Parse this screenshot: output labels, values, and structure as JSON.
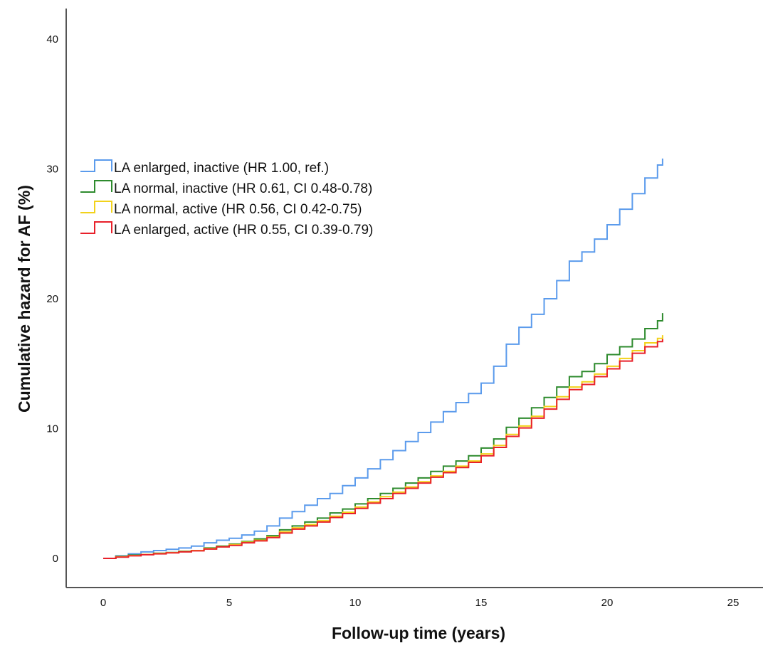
{
  "chart_data": {
    "type": "line",
    "title": "",
    "xlabel": "Follow-up time (years)",
    "ylabel": "Cumulative hazard for AF (%)",
    "xlim": [
      0,
      25
    ],
    "ylim": [
      0,
      40
    ],
    "x_ticks": [
      0,
      5,
      10,
      15,
      20,
      25
    ],
    "y_ticks": [
      0,
      10,
      20,
      30,
      40
    ],
    "grid": false,
    "legend_position": "upper-left",
    "series": [
      {
        "name": "LA enlarged, inactive (HR 1.00, ref.)",
        "color": "#5b9bec",
        "x": [
          0,
          0.5,
          1,
          1.5,
          2,
          2.5,
          3,
          3.5,
          4,
          4.5,
          5,
          5.5,
          6,
          6.5,
          7,
          7.5,
          8,
          8.5,
          9,
          9.5,
          10,
          10.5,
          11,
          11.5,
          12,
          12.5,
          13,
          13.5,
          14,
          14.5,
          15,
          15.5,
          16,
          16.5,
          17,
          17.5,
          18,
          18.5,
          19,
          19.5,
          20,
          20.5,
          21,
          21.5,
          22,
          22.2
        ],
        "y": [
          0,
          0.2,
          0.35,
          0.5,
          0.6,
          0.7,
          0.8,
          0.95,
          1.2,
          1.4,
          1.55,
          1.8,
          2.1,
          2.5,
          3.1,
          3.6,
          4.1,
          4.6,
          5.0,
          5.6,
          6.2,
          6.9,
          7.6,
          8.3,
          9.0,
          9.7,
          10.5,
          11.3,
          12.0,
          12.7,
          13.5,
          14.8,
          16.5,
          17.8,
          18.8,
          20.0,
          21.4,
          22.9,
          23.6,
          24.6,
          25.7,
          26.9,
          28.1,
          29.3,
          30.3,
          30.8
        ]
      },
      {
        "name": "LA normal, inactive (HR 0.61, CI 0.48-0.78)",
        "color": "#2e8b2e",
        "x": [
          0,
          0.5,
          1,
          1.5,
          2,
          2.5,
          3,
          3.5,
          4,
          4.5,
          5,
          5.5,
          6,
          6.5,
          7,
          7.5,
          8,
          8.5,
          9,
          9.5,
          10,
          10.5,
          11,
          11.5,
          12,
          12.5,
          13,
          13.5,
          14,
          14.5,
          15,
          15.5,
          16,
          16.5,
          17,
          17.5,
          18,
          18.5,
          19,
          19.5,
          20,
          20.5,
          21,
          21.5,
          22,
          22.2
        ],
        "y": [
          0,
          0.15,
          0.25,
          0.3,
          0.4,
          0.45,
          0.55,
          0.6,
          0.8,
          0.95,
          1.1,
          1.3,
          1.5,
          1.75,
          2.2,
          2.5,
          2.8,
          3.1,
          3.5,
          3.8,
          4.2,
          4.6,
          5.0,
          5.4,
          5.8,
          6.2,
          6.7,
          7.1,
          7.5,
          7.9,
          8.5,
          9.2,
          10.1,
          10.8,
          11.6,
          12.4,
          13.2,
          14.0,
          14.4,
          15.0,
          15.7,
          16.3,
          16.9,
          17.7,
          18.3,
          18.9
        ]
      },
      {
        "name": "LA normal, active (HR 0.56, CI 0.42-0.75)",
        "color": "#f2d21b",
        "x": [
          0,
          0.5,
          1,
          1.5,
          2,
          2.5,
          3,
          3.5,
          4,
          4.5,
          5,
          5.5,
          6,
          6.5,
          7,
          7.5,
          8,
          8.5,
          9,
          9.5,
          10,
          10.5,
          11,
          11.5,
          12,
          12.5,
          13,
          13.5,
          14,
          14.5,
          15,
          15.5,
          16,
          16.5,
          17,
          17.5,
          18,
          18.5,
          19,
          19.5,
          20,
          20.5,
          21,
          21.5,
          22,
          22.2
        ],
        "y": [
          0,
          0.12,
          0.22,
          0.3,
          0.38,
          0.44,
          0.52,
          0.6,
          0.75,
          0.9,
          1.05,
          1.25,
          1.4,
          1.65,
          2.05,
          2.35,
          2.6,
          2.9,
          3.25,
          3.55,
          3.95,
          4.35,
          4.75,
          5.1,
          5.5,
          5.9,
          6.35,
          6.7,
          7.1,
          7.5,
          8.05,
          8.7,
          9.55,
          10.2,
          10.95,
          11.7,
          12.45,
          13.2,
          13.6,
          14.2,
          14.8,
          15.4,
          16.0,
          16.6,
          16.95,
          17.2
        ]
      },
      {
        "name": "LA enlarged, active (HR 0.55, CI 0.39-0.79)",
        "color": "#e8202a",
        "x": [
          0,
          0.5,
          1,
          1.5,
          2,
          2.5,
          3,
          3.5,
          4,
          4.5,
          5,
          5.5,
          6,
          6.5,
          7,
          7.5,
          8,
          8.5,
          9,
          9.5,
          10,
          10.5,
          11,
          11.5,
          12,
          12.5,
          13,
          13.5,
          14,
          14.5,
          15,
          15.5,
          16,
          16.5,
          17,
          17.5,
          18,
          18.5,
          19,
          19.5,
          20,
          20.5,
          21,
          21.5,
          22,
          22.2
        ],
        "y": [
          0,
          0.1,
          0.2,
          0.28,
          0.35,
          0.42,
          0.5,
          0.58,
          0.72,
          0.88,
          1.0,
          1.2,
          1.35,
          1.6,
          1.95,
          2.25,
          2.5,
          2.8,
          3.15,
          3.45,
          3.85,
          4.25,
          4.6,
          5.0,
          5.4,
          5.8,
          6.25,
          6.6,
          7.0,
          7.4,
          7.9,
          8.55,
          9.4,
          10.05,
          10.8,
          11.5,
          12.25,
          13.0,
          13.4,
          14.0,
          14.6,
          15.2,
          15.8,
          16.3,
          16.7,
          16.9
        ]
      }
    ]
  }
}
